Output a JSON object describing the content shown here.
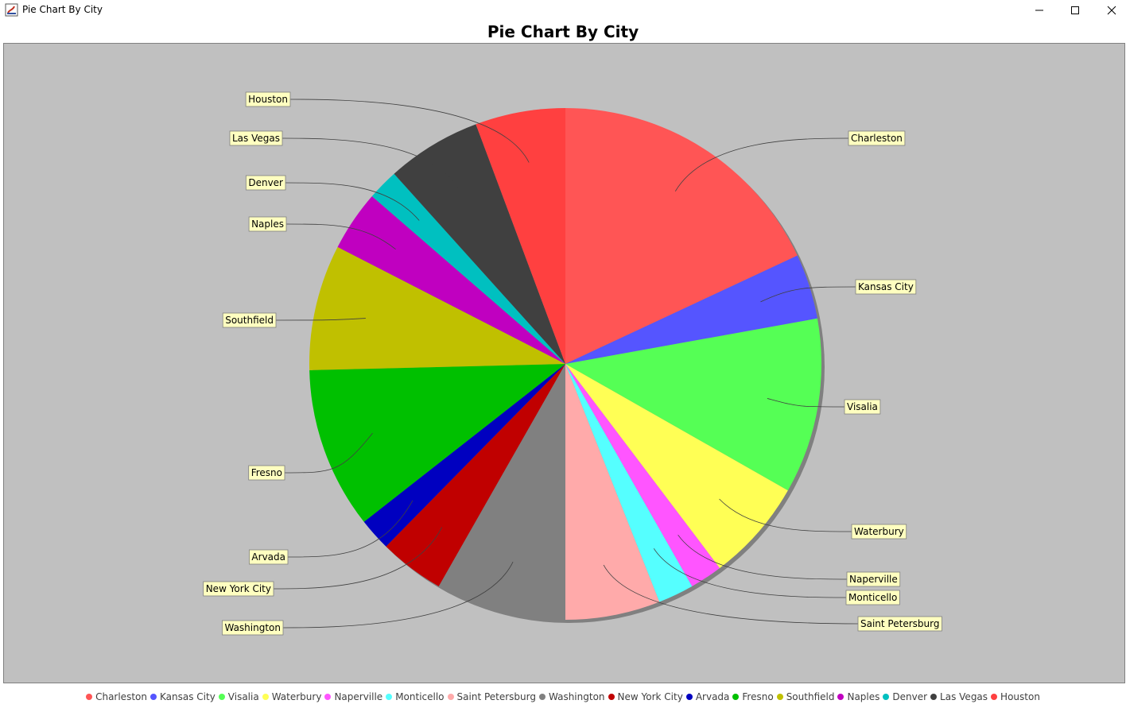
{
  "window": {
    "title": "Pie Chart By City",
    "minimize_glyph": "—",
    "maximize_glyph": "☐",
    "close_glyph": "✕"
  },
  "chart_data": {
    "type": "pie",
    "title": "Pie Chart By City",
    "legend_placement": "bottom",
    "slices": [
      {
        "label": "Charleston",
        "value": 18.4,
        "color": "#ff5555"
      },
      {
        "label": "Kansas City",
        "value": 4.2,
        "color": "#5555ff"
      },
      {
        "label": "Visalia",
        "value": 11.3,
        "color": "#55ff55"
      },
      {
        "label": "Waterbury",
        "value": 6.6,
        "color": "#ffff55"
      },
      {
        "label": "Naperville",
        "value": 2.1,
        "color": "#ff55ff"
      },
      {
        "label": "Monticello",
        "value": 2.3,
        "color": "#55ffff"
      },
      {
        "label": "Saint Petersburg",
        "value": 6.1,
        "color": "#ffaaaa"
      },
      {
        "label": "Washington",
        "value": 8.4,
        "color": "#808080"
      },
      {
        "label": "New York City",
        "value": 4.2,
        "color": "#c00000"
      },
      {
        "label": "Arvada",
        "value": 2.1,
        "color": "#0000c0"
      },
      {
        "label": "Fresno",
        "value": 10.4,
        "color": "#00c000"
      },
      {
        "label": "Southfield",
        "value": 8.1,
        "color": "#c0c000"
      },
      {
        "label": "Naples",
        "value": 3.9,
        "color": "#c000c0"
      },
      {
        "label": "Denver",
        "value": 2.0,
        "color": "#00c0c0"
      },
      {
        "label": "Las Vegas",
        "value": 6.1,
        "color": "#404040"
      },
      {
        "label": "Houston",
        "value": 5.8,
        "color": "#ff4040"
      }
    ]
  }
}
